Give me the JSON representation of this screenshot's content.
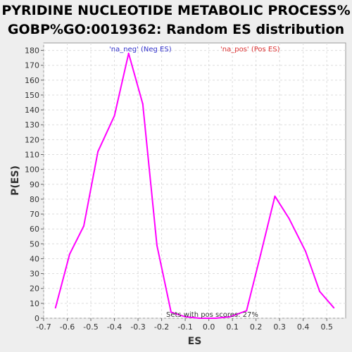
{
  "chart_data": {
    "type": "line",
    "title_lines": [
      "PYRIDINE NUCLEOTIDE METABOLIC PROCESS%",
      "GOBP%GO:0019362: Random ES distribution"
    ],
    "xlabel": "ES",
    "ylabel": "P(ES)",
    "xlim": [
      -0.7,
      0.58
    ],
    "ylim": [
      0,
      185
    ],
    "x_ticks": [
      "-0.7",
      "-0.6",
      "-0.5",
      "-0.4",
      "-0.3",
      "-0.2",
      "-0.1",
      "0.0",
      "0.1",
      "0.2",
      "0.3",
      "0.4",
      "0.5"
    ],
    "y_ticks": [
      "0",
      "10",
      "20",
      "30",
      "40",
      "50",
      "60",
      "70",
      "80",
      "90",
      "100",
      "110",
      "120",
      "130",
      "140",
      "150",
      "160",
      "170",
      "180"
    ],
    "grid": true,
    "legend": [
      {
        "label": "'na_neg' (Neg ES)",
        "color": "#3333cc"
      },
      {
        "label": "'na_pos' (Pos ES)",
        "color": "#dd3333"
      }
    ],
    "annotation": "Sets with pos scores: 27%",
    "series": [
      {
        "color": "#ff00ff",
        "x": [
          -0.65,
          -0.59,
          -0.53,
          -0.47,
          -0.4,
          -0.34,
          -0.28,
          -0.22,
          -0.16,
          -0.1,
          -0.04,
          0.03,
          0.09,
          0.16,
          0.22,
          0.28,
          0.34,
          0.41,
          0.47,
          0.53
        ],
        "y": [
          7,
          43,
          62,
          112,
          136,
          178,
          144,
          49,
          4,
          1,
          0,
          0,
          1,
          5,
          43,
          82,
          67,
          45,
          18,
          7
        ]
      }
    ]
  }
}
